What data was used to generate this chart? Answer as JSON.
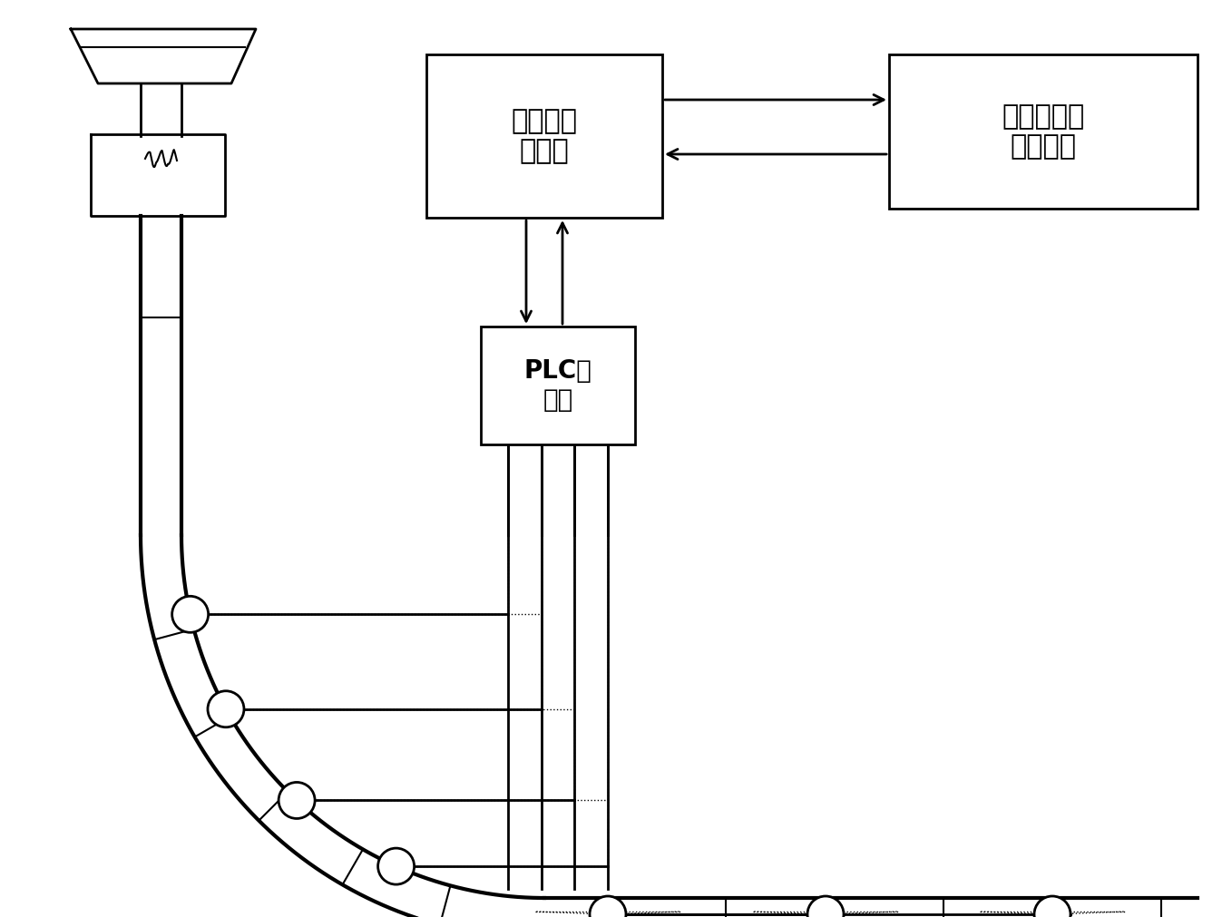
{
  "bg_color": "#ffffff",
  "box1_text": "过程控制\n计算机",
  "box2_text": "二冷模型控\n制计算机",
  "box3_text": "PLC计\n算机",
  "line_color": "#000000"
}
